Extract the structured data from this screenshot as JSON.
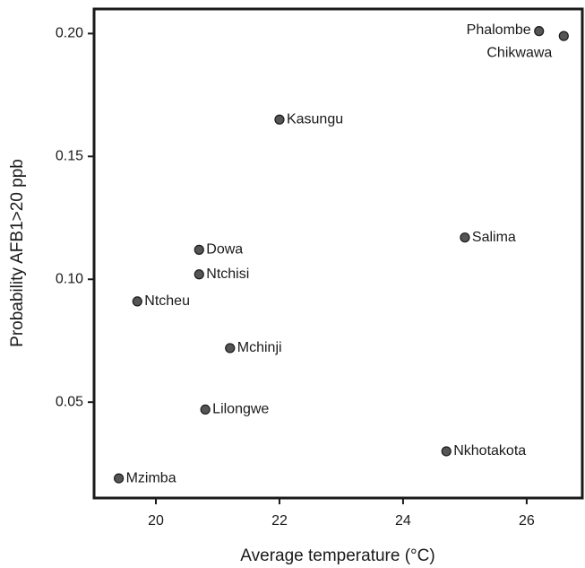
{
  "chart_data": {
    "type": "scatter",
    "x_label": "Average temperature (°C)",
    "y_label": "Probability AFB1>20 ppb",
    "point_labels": [
      "Phalombe",
      "Chikwawa",
      "Kasungu",
      "Salima",
      "Dowa",
      "Ntchisi",
      "Ntcheu",
      "Mchinji",
      "Lilongwe",
      "Nkhotakota",
      "Mzimba"
    ],
    "x": [
      26.2,
      26.6,
      22.0,
      25.0,
      20.7,
      20.7,
      19.7,
      21.2,
      20.8,
      24.7,
      19.4
    ],
    "values": [
      0.201,
      0.199,
      0.165,
      0.117,
      0.112,
      0.102,
      0.091,
      0.072,
      0.047,
      0.03,
      0.019
    ],
    "color": "#555555",
    "xlim": [
      19.0,
      26.9
    ],
    "ylim": [
      0.011,
      0.21
    ],
    "xticks": [
      20,
      22,
      24,
      26
    ],
    "yticks": [
      {
        "value": 0.2,
        "label": "0.20"
      },
      0.15,
      {
        "value": 0.1,
        "label": "0.10"
      },
      0.05
    ]
  }
}
